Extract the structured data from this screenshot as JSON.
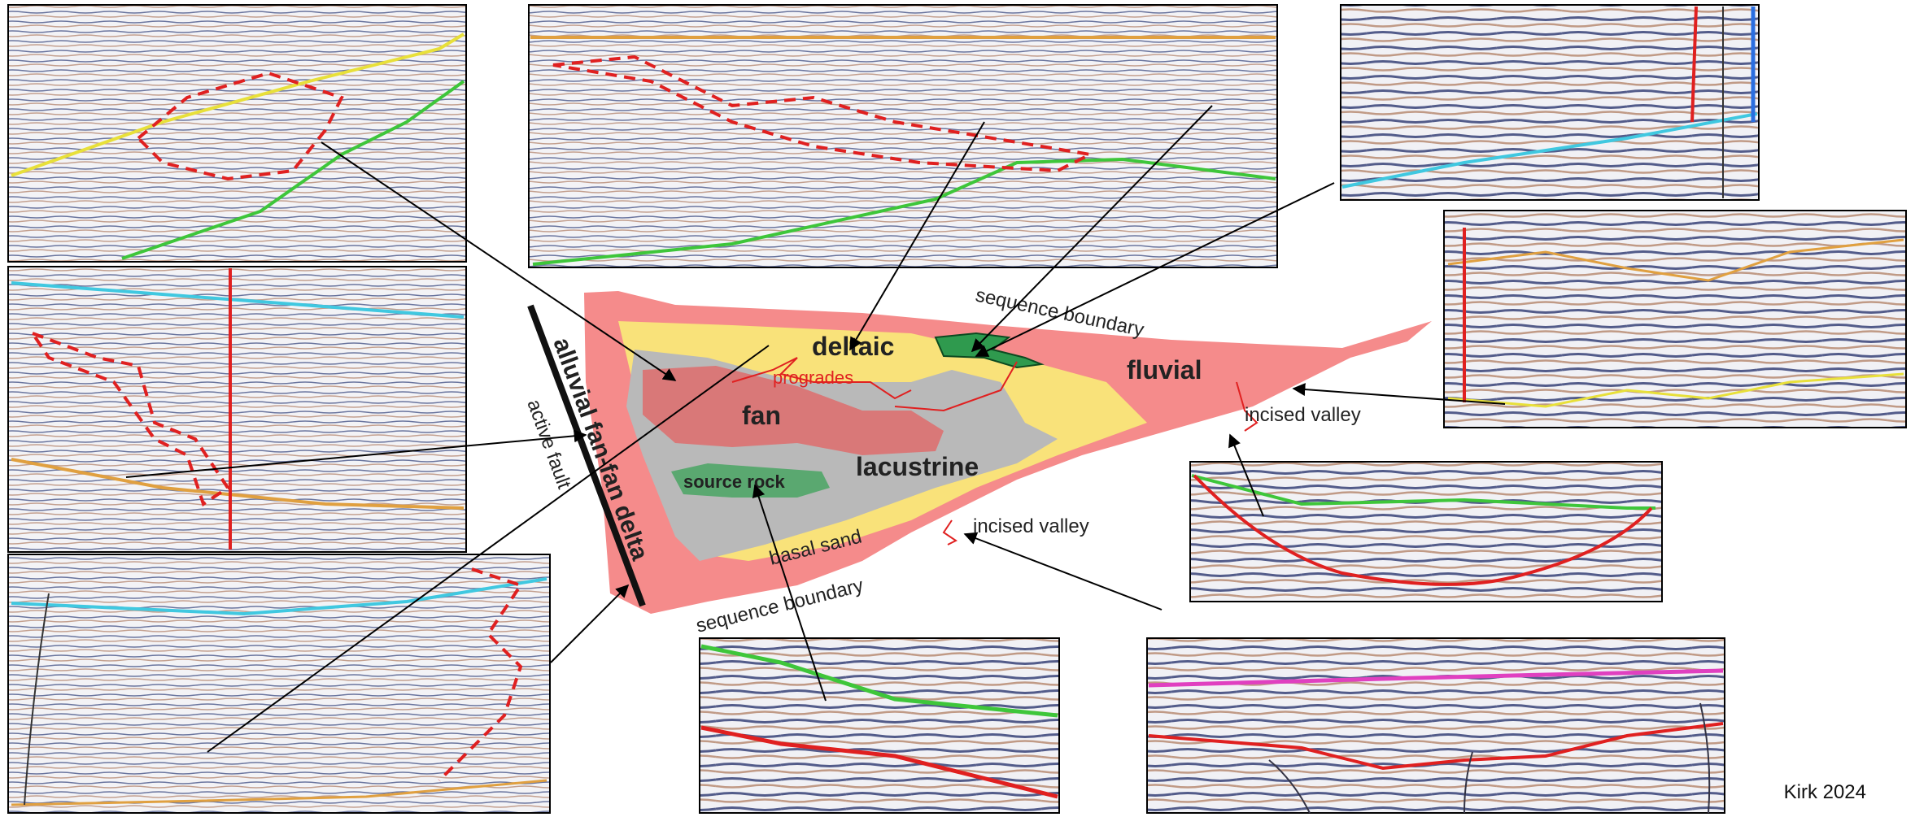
{
  "labels": {
    "alluvial": "alluvial fan-fan delta",
    "active_fault": "active fault",
    "deltaic": "deltaic",
    "progrades": "progrades",
    "fan": "fan",
    "lacustrine": "lacustrine",
    "source_rock": "source rock",
    "basal_sand": "basal sand",
    "seq_boundary_top": "sequence boundary",
    "seq_boundary_bottom": "sequence boundary",
    "fluvial": "fluvial",
    "incised_valley_right": "incised valley",
    "incised_valley_bottom": "incised valley"
  },
  "credit": "Kirk 2024",
  "colors": {
    "basin_fill": "#f58b8b",
    "sand": "#f9e27a",
    "lacustrine": "#b9b9b9",
    "fan": "#d97878",
    "source_rock": "#5aa870",
    "deltaic_green": "#2f9a4e",
    "horizon_yellow": "#e8e03a",
    "horizon_green": "#3ec63a",
    "horizon_orange": "#e0a040",
    "horizon_cyan": "#40c8e0",
    "horizon_magenta": "#e040c0",
    "dashed_red": "#e02020"
  }
}
